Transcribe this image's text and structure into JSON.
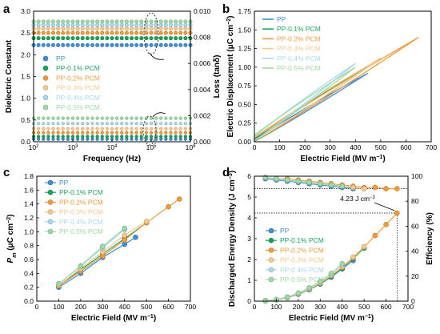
{
  "colors": {
    "PP": "#3d8fd6",
    "PP-0.1% PCM": "#1aa35a",
    "PP-0.2% PCM": "#f39a3c",
    "PP-0.3% PCM": "#f6c88e",
    "PP-0.4% PCM": "#a8d8ef",
    "PP-0.5% PCM": "#9fd9a5"
  },
  "legend_labels": [
    "PP",
    "PP-0.1% PCM",
    "PP-0.2% PCM",
    "PP-0.3% PCM",
    "PP-0.4% PCM",
    "PP-0.5% PCM"
  ],
  "chart_data": [
    {
      "panel": "a",
      "type": "scatter",
      "xlabel": "Frequency (Hz)",
      "ylabel": "Dielectric Constant",
      "y2label": "Loss (tanδ)",
      "xscale": "log",
      "xlim": [
        100,
        1000000
      ],
      "ylim": [
        0,
        3.0
      ],
      "y2lim": [
        0,
        0.01
      ],
      "xticks": [
        "10^2",
        "10^3",
        "10^4",
        "10^5",
        "10^6"
      ],
      "yticks": [
        "0.0",
        "0.5",
        "1.0",
        "1.5",
        "2.0",
        "2.5",
        "3.0"
      ],
      "y2ticks": [
        "0.000",
        "0.002",
        "0.004",
        "0.006",
        "0.008",
        "0.010"
      ],
      "legend_position": "center-left",
      "series": [
        {
          "name": "PP",
          "dielectric_constant": 2.22,
          "loss": 0.0002
        },
        {
          "name": "PP-0.1% PCM",
          "dielectric_constant": 2.38,
          "loss": 0.0004
        },
        {
          "name": "PP-0.2% PCM",
          "dielectric_constant": 2.5,
          "loss": 0.0007
        },
        {
          "name": "PP-0.3% PCM",
          "dielectric_constant": 2.6,
          "loss": 0.001
        },
        {
          "name": "PP-0.4% PCM",
          "dielectric_constant": 2.68,
          "loss": 0.0014
        },
        {
          "name": "PP-0.5% PCM",
          "dielectric_constant": 2.76,
          "loss": 0.0018
        }
      ]
    },
    {
      "panel": "b",
      "type": "line",
      "xlabel": "Electric Field (MV m⁻¹)",
      "ylabel": "Electric Displacement (μC cm⁻²)",
      "xlim": [
        0,
        700
      ],
      "ylim": [
        0,
        1.75
      ],
      "xticks": [
        "0",
        "100",
        "200",
        "300",
        "400",
        "500",
        "600",
        "700"
      ],
      "yticks": [
        "0.00",
        "0.25",
        "0.50",
        "0.75",
        "1.00",
        "1.25",
        "1.50",
        "1.75"
      ],
      "legend_position": "top-left",
      "series": [
        {
          "name": "PP",
          "max_field": 450,
          "max_displacement": 0.92
        },
        {
          "name": "PP-0.1% PCM",
          "max_field": 500,
          "max_displacement": 1.12
        },
        {
          "name": "PP-0.2% PCM",
          "max_field": 650,
          "max_displacement": 1.4
        },
        {
          "name": "PP-0.3% PCM",
          "max_field": 500,
          "max_displacement": 1.12
        },
        {
          "name": "PP-0.4% PCM",
          "max_field": 400,
          "max_displacement": 1.05
        },
        {
          "name": "PP-0.5% PCM",
          "max_field": 400,
          "max_displacement": 1.0
        }
      ]
    },
    {
      "panel": "c",
      "type": "line",
      "xlabel": "Electric Field (MV m⁻¹)",
      "ylabel": "Pm (μC cm⁻²)",
      "xlim": [
        0,
        700
      ],
      "ylim": [
        0,
        1.8
      ],
      "xticks": [
        "0",
        "100",
        "200",
        "300",
        "400",
        "500",
        "600",
        "700"
      ],
      "yticks": [
        "0.0",
        "0.2",
        "0.4",
        "0.6",
        "0.8",
        "1.0",
        "1.2",
        "1.4",
        "1.6",
        "1.8"
      ],
      "legend_position": "top-left",
      "series": [
        {
          "name": "PP",
          "x": [
            100,
            200,
            300,
            400,
            450
          ],
          "y": [
            0.2,
            0.4,
            0.63,
            0.82,
            0.92
          ]
        },
        {
          "name": "PP-0.1% PCM",
          "x": [
            100,
            200,
            300,
            400,
            500
          ],
          "y": [
            0.22,
            0.45,
            0.68,
            0.9,
            1.13
          ]
        },
        {
          "name": "PP-0.2% PCM",
          "x": [
            100,
            200,
            300,
            400,
            500,
            600,
            650
          ],
          "y": [
            0.22,
            0.43,
            0.65,
            0.88,
            1.13,
            1.36,
            1.47
          ]
        },
        {
          "name": "PP-0.3% PCM",
          "x": [
            100,
            200,
            300,
            400,
            500
          ],
          "y": [
            0.23,
            0.47,
            0.71,
            0.95,
            1.15
          ]
        },
        {
          "name": "PP-0.4% PCM",
          "x": [
            100,
            200,
            300,
            400
          ],
          "y": [
            0.25,
            0.5,
            0.77,
            1.03
          ]
        },
        {
          "name": "PP-0.5% PCM",
          "x": [
            100,
            200,
            300,
            400
          ],
          "y": [
            0.25,
            0.51,
            0.79,
            1.05
          ]
        }
      ]
    },
    {
      "panel": "d",
      "type": "scatter",
      "xlabel": "Electric Field (MV m⁻¹)",
      "ylabel": "Discharged Energy Density (J cm⁻³)",
      "y2label": "Efficiency (%)",
      "xlim": [
        0,
        700
      ],
      "ylim": [
        0,
        6
      ],
      "y2lim": [
        0,
        100
      ],
      "xticks": [
        "0",
        "100",
        "200",
        "300",
        "400",
        "500",
        "600",
        "700"
      ],
      "yticks": [
        "0",
        "1",
        "2",
        "3",
        "4",
        "5",
        "6"
      ],
      "y2ticks": [
        "0",
        "20",
        "40",
        "60",
        "80",
        "100"
      ],
      "legend_position": "center-left",
      "annotation": "4.23 J cm⁻³",
      "x": [
        50,
        100,
        150,
        200,
        250,
        300,
        350,
        400,
        450,
        500,
        550,
        600,
        650
      ],
      "series": [
        {
          "name": "PP",
          "energy": [
            0.02,
            0.06,
            0.17,
            0.33,
            0.55,
            0.82,
            1.15,
            1.55,
            1.95
          ],
          "efficiency": [
            98,
            97,
            96,
            95,
            94,
            93,
            92,
            91,
            90
          ]
        },
        {
          "name": "PP-0.1% PCM",
          "energy": [
            0.02,
            0.07,
            0.18,
            0.34,
            0.56,
            0.84,
            1.18,
            1.58,
            2.05,
            2.55
          ],
          "efficiency": [
            99,
            98,
            97,
            96,
            95,
            94,
            93,
            92,
            91,
            90
          ]
        },
        {
          "name": "PP-0.2% PCM",
          "energy": [
            0.02,
            0.07,
            0.18,
            0.35,
            0.57,
            0.86,
            1.22,
            1.62,
            2.08,
            2.6,
            3.15,
            3.68,
            4.23
          ],
          "efficiency": [
            99,
            98,
            98,
            97,
            96,
            95,
            94,
            93,
            92,
            91,
            91,
            90,
            90
          ]
        },
        {
          "name": "PP-0.3% PCM",
          "energy": [
            0.02,
            0.07,
            0.19,
            0.36,
            0.59,
            0.88,
            1.24,
            1.66,
            2.12,
            2.62
          ],
          "efficiency": [
            99,
            98,
            97,
            96,
            95,
            94,
            93,
            92,
            91,
            90
          ]
        },
        {
          "name": "PP-0.4% PCM",
          "energy": [
            0.02,
            0.08,
            0.2,
            0.38,
            0.62,
            0.93,
            1.3,
            1.75
          ],
          "efficiency": [
            99,
            98,
            97,
            96,
            95,
            94,
            93,
            92
          ]
        },
        {
          "name": "PP-0.5% PCM",
          "energy": [
            0.02,
            0.08,
            0.2,
            0.39,
            0.64,
            0.95,
            1.33,
            1.8
          ],
          "efficiency": [
            99,
            98,
            97,
            96,
            95,
            94,
            93,
            92
          ]
        }
      ]
    }
  ],
  "panel_letters": [
    "a",
    "b",
    "c",
    "d"
  ]
}
